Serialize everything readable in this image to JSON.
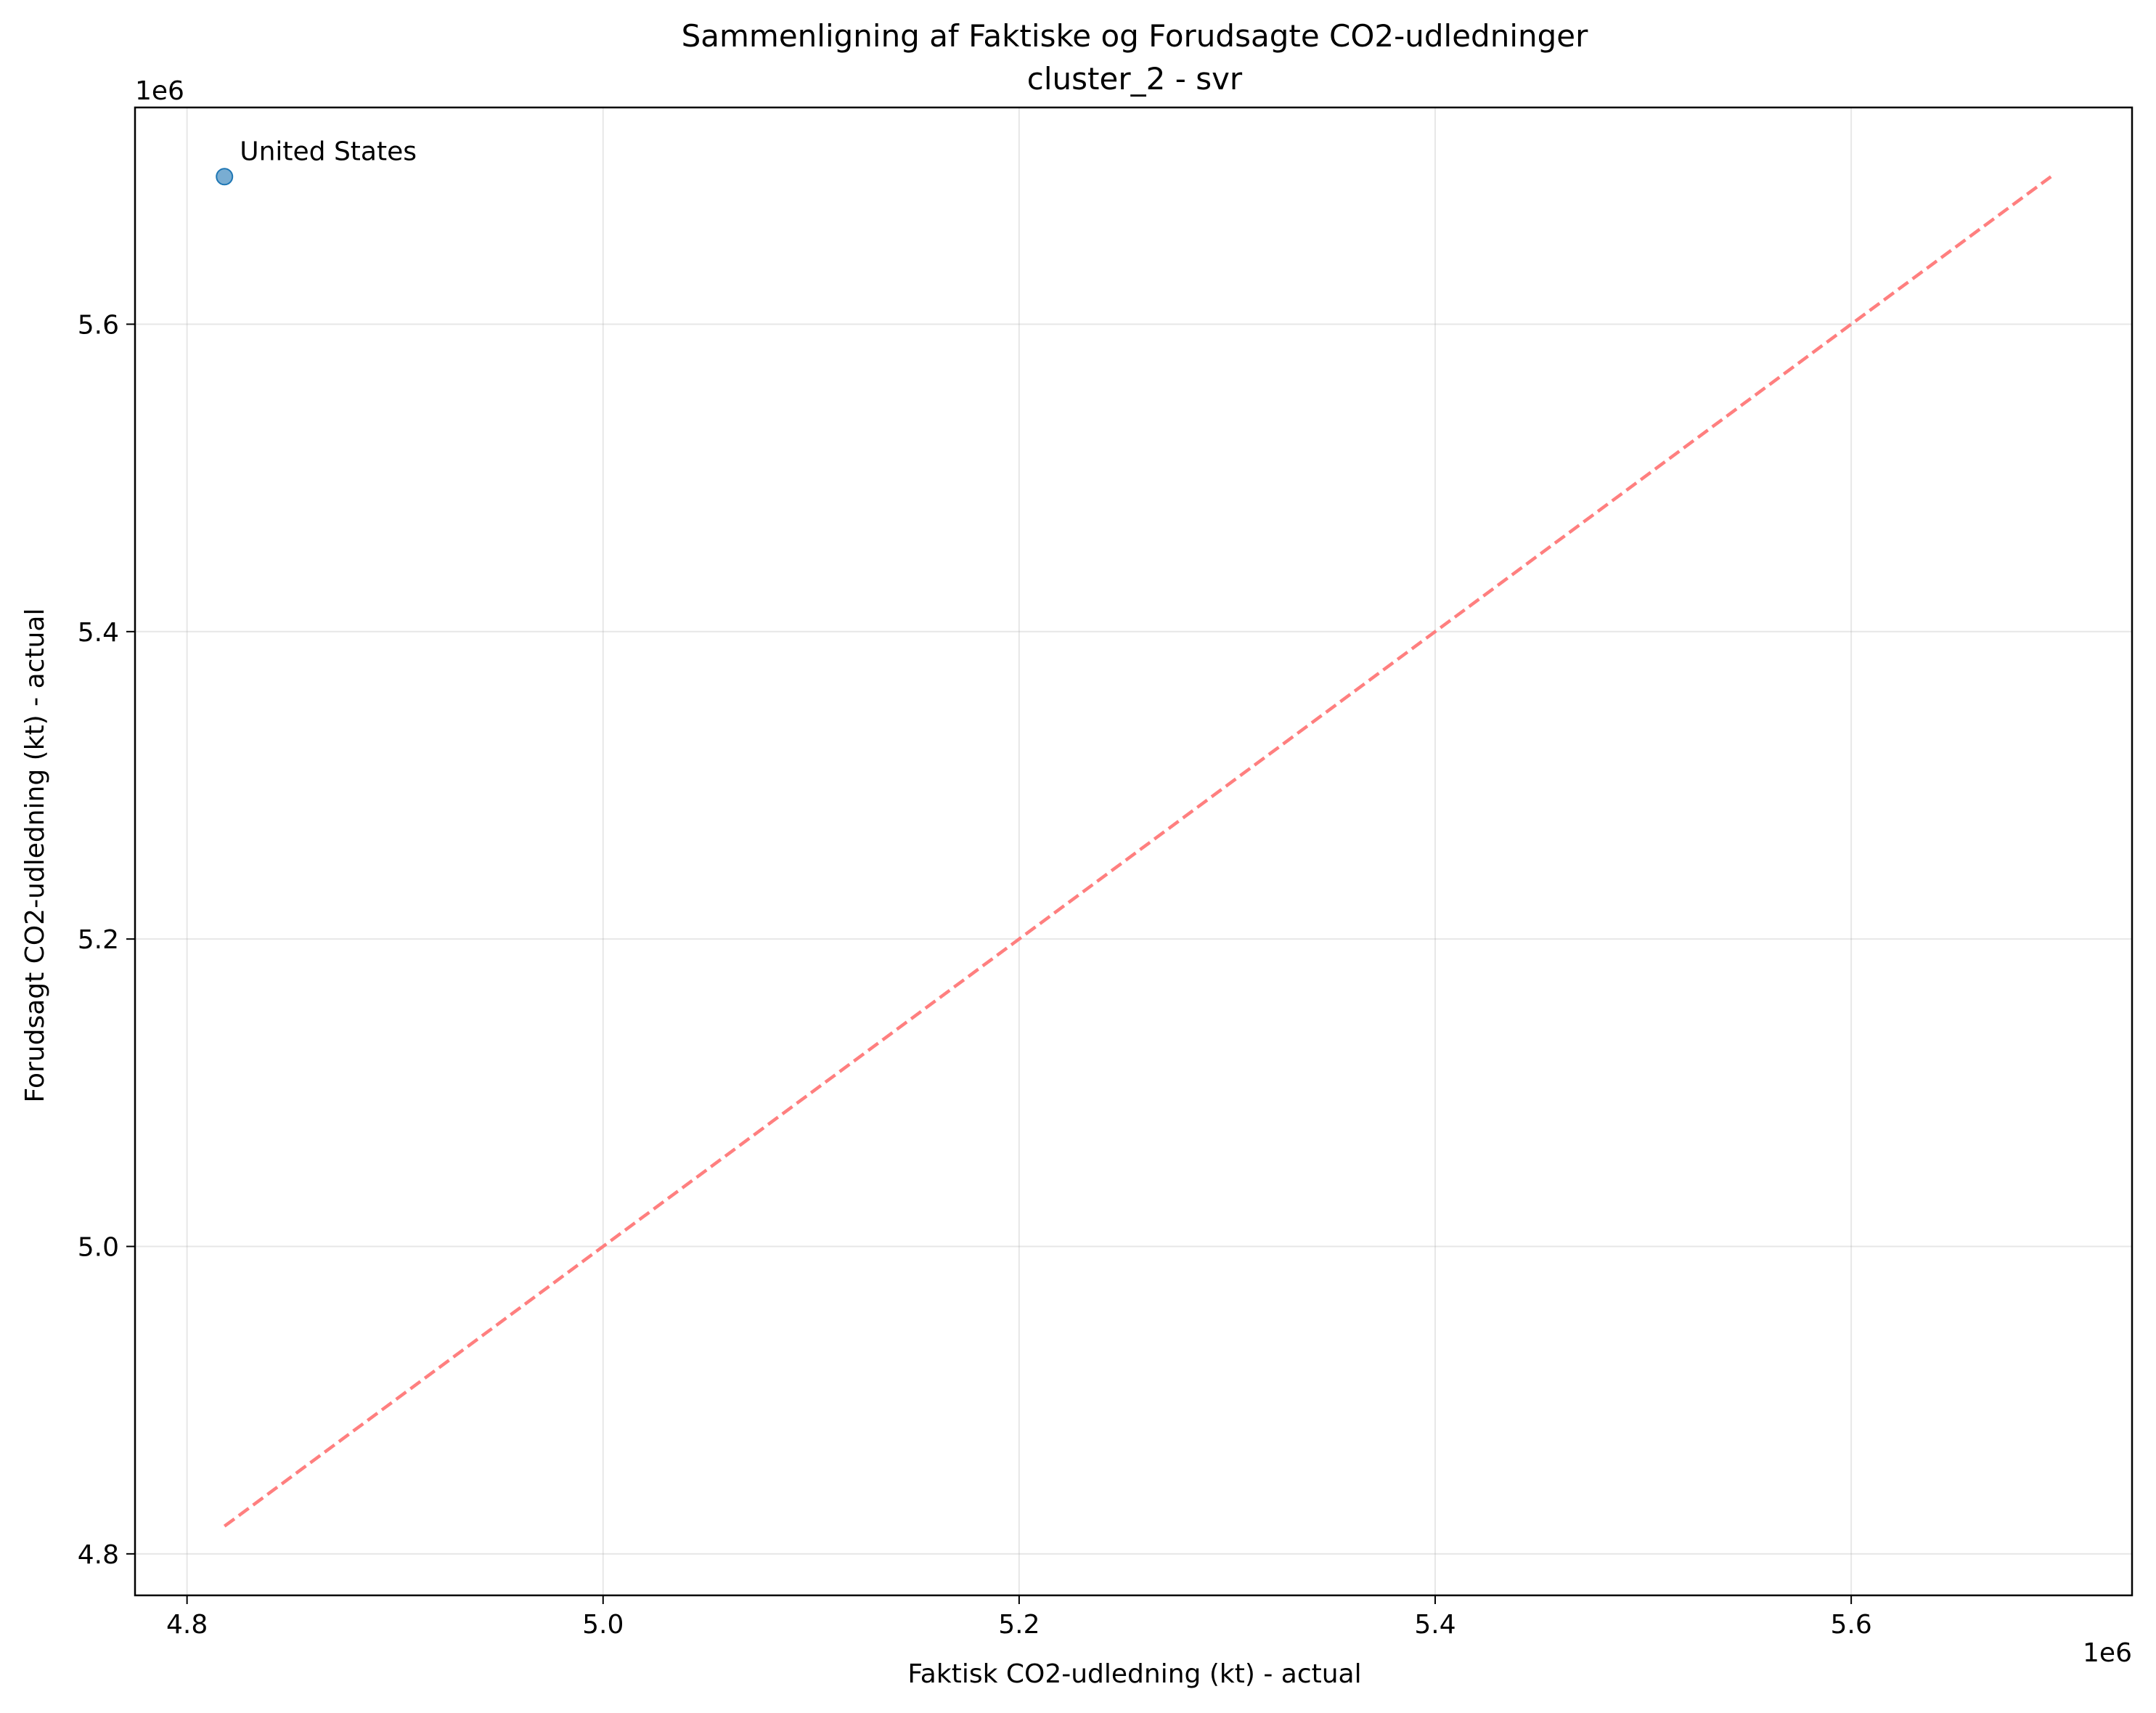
{
  "chart_data": {
    "type": "scatter",
    "title": "Sammenligning af Faktiske og Forudsagte CO2-udledninger",
    "subtitle": "cluster_2 - svr",
    "xlabel": "Faktisk CO2-udledning (kt) - actual",
    "ylabel": "Forudsagt CO2-udledning (kt) - actual",
    "x_offset_label": "1e6",
    "y_offset_label": "1e6",
    "xlim": [
      4775000,
      5735000
    ],
    "ylim": [
      4773000,
      5741000
    ],
    "x_ticks": [
      4800000,
      5000000,
      5200000,
      5400000,
      5600000
    ],
    "x_tick_labels": [
      "4.8",
      "5.0",
      "5.2",
      "5.4",
      "5.6"
    ],
    "y_ticks": [
      4800000,
      5000000,
      5200000,
      5400000,
      5600000
    ],
    "y_tick_labels": [
      "4.8",
      "5.0",
      "5.2",
      "5.4",
      "5.6"
    ],
    "grid": true,
    "points": [
      {
        "x": 4818000,
        "y": 5696000,
        "label": "United States"
      }
    ],
    "reference_line": {
      "x": [
        4818000,
        5696000
      ],
      "y": [
        4818000,
        5696000
      ],
      "style": "dashed"
    },
    "colors": {
      "point": "#1f77b4",
      "reference_line": "#ff7f7f"
    }
  }
}
